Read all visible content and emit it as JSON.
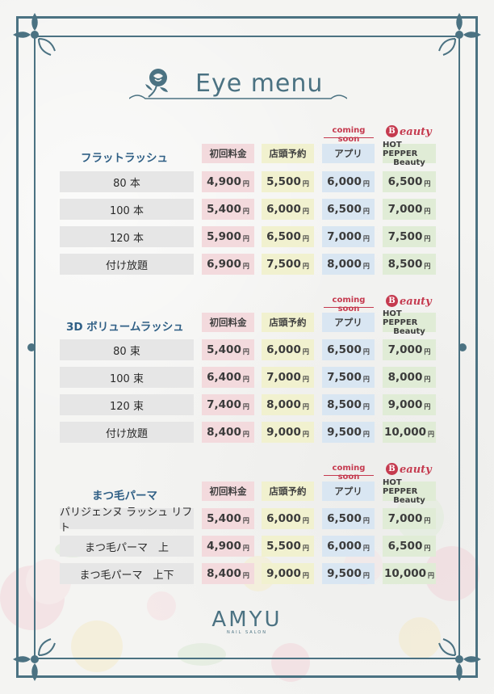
{
  "title": "Eye menu",
  "columns": {
    "c1": "初回料金",
    "c2": "店頭予約",
    "c3": "アプリ",
    "c4_line1": "HOT PEPPER",
    "c4_line2": "Beauty",
    "coming_soon": "coming soon",
    "beauty_logo_letter": "B",
    "beauty_logo_word": "eauty",
    "beauty_logo_tiny": "HOT PEPPER"
  },
  "currency": "円",
  "sections": [
    {
      "title": "フラットラッシュ",
      "rows": [
        {
          "label": "80 本",
          "c1": "4,900",
          "c2": "5,500",
          "c3": "6,000",
          "c4": "6,500"
        },
        {
          "label": "100 本",
          "c1": "5,400",
          "c2": "6,000",
          "c3": "6,500",
          "c4": "7,000"
        },
        {
          "label": "120 本",
          "c1": "5,900",
          "c2": "6,500",
          "c3": "7,000",
          "c4": "7,500"
        },
        {
          "label": "付け放題",
          "c1": "6,900",
          "c2": "7,500",
          "c3": "8,000",
          "c4": "8,500"
        }
      ]
    },
    {
      "title": "3D ボリュームラッシュ",
      "rows": [
        {
          "label": "80 束",
          "c1": "5,400",
          "c2": "6,000",
          "c3": "6,500",
          "c4": "7,000"
        },
        {
          "label": "100 束",
          "c1": "6,400",
          "c2": "7,000",
          "c3": "7,500",
          "c4": "8,000"
        },
        {
          "label": "120 束",
          "c1": "7,400",
          "c2": "8,000",
          "c3": "8,500",
          "c4": "9,000"
        },
        {
          "label": "付け放題",
          "c1": "8,400",
          "c2": "9,000",
          "c3": "9,500",
          "c4": "10,000"
        }
      ]
    },
    {
      "title": "まつ毛パーマ",
      "rows": [
        {
          "label": "パリジェンヌ ラッシュ リフト",
          "c1": "5,400",
          "c2": "6,000",
          "c3": "6,500",
          "c4": "7,000"
        },
        {
          "label": "まつ毛パーマ　上",
          "c1": "4,900",
          "c2": "5,500",
          "c3": "6,000",
          "c4": "6,500"
        },
        {
          "label": "まつ毛パーマ　上下",
          "c1": "8,400",
          "c2": "9,000",
          "c3": "9,500",
          "c4": "10,000"
        }
      ]
    }
  ],
  "brand": {
    "name": "AMYU",
    "sub": "NAIL SALON"
  },
  "colors": {
    "frame": "#4b7282",
    "section_title": "#2f5f85",
    "accent_red": "#c53a4f"
  }
}
